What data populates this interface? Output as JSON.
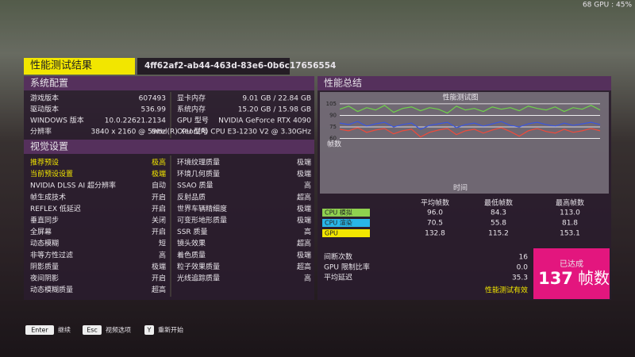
{
  "hud": "68 GPU : 45%",
  "header": {
    "title": "性能测试结果",
    "id": "4ff62af2-ab44-463d-83e6-0b6c17656554"
  },
  "system": {
    "title": "系统配置",
    "left": [
      [
        "游戏版本",
        "607493"
      ],
      [
        "驱动版本",
        "536.99"
      ],
      [
        "WINDOWS 版本",
        "10.0.22621.2134"
      ],
      [
        "分辨率",
        "3840 x 2160 @ 59Hz"
      ]
    ],
    "right": [
      [
        "显卡内存",
        "9.01 GB / 22.84 GB"
      ],
      [
        "系统内存",
        "15.20 GB / 15.98 GB"
      ],
      [
        "GPU 型号",
        "NVIDIA GeForce RTX 4090"
      ],
      [
        "CPU 型号",
        "Intel(R) Xeon(R) CPU E3-1230 V2 @ 3.30GHz"
      ]
    ]
  },
  "visual": {
    "title": "视觉设置",
    "left": [
      [
        "推荐预设",
        "极高"
      ],
      [
        "当前预设设置",
        "极端"
      ],
      [
        "NVIDIA DLSS AI 超分辨率",
        "自动"
      ],
      [
        "帧生成技术",
        "开启"
      ],
      [
        "REFLEX 低延迟",
        "开启"
      ],
      [
        "垂直同步",
        "关闭"
      ],
      [
        "全屏幕",
        "开启"
      ],
      [
        "动态模糊",
        "短"
      ],
      [
        "非等方性过滤",
        "高"
      ],
      [
        "阴影质量",
        "极端"
      ],
      [
        "夜间阴影",
        "开启"
      ],
      [
        "动态模糊质量",
        "超高"
      ]
    ],
    "right": [
      [
        "环境纹理质量",
        "极端"
      ],
      [
        "环境几何质量",
        "极端"
      ],
      [
        "SSAO 质量",
        "高"
      ],
      [
        "反射品质",
        "超高"
      ],
      [
        "世界车辆精细度",
        "极端"
      ],
      [
        "可变形地形质量",
        "极端"
      ],
      [
        "SSR 质量",
        "高"
      ],
      [
        "镜头效果",
        "超高"
      ],
      [
        "着色质量",
        "极端"
      ],
      [
        "粒子效果质量",
        "超高"
      ],
      [
        "光线追踪质量",
        "高"
      ]
    ]
  },
  "summary": {
    "title": "性能总结",
    "chart": {
      "type": "line",
      "title": "性能测试图",
      "ylabel": "帧数",
      "xlabel": "时间",
      "ylim": [
        5,
        110
      ],
      "yticks": [
        105,
        90,
        75,
        60
      ],
      "series": [
        {
          "color": "#6fd24a",
          "values": [
            98,
            102,
            95,
            100,
            97,
            103,
            94,
            99,
            101,
            96,
            100,
            98,
            93,
            102,
            97,
            99,
            95,
            101,
            98,
            100,
            96,
            102,
            99,
            97,
            101,
            95,
            100,
            98,
            103,
            97
          ]
        },
        {
          "color": "#3a56e0",
          "values": [
            80,
            78,
            82,
            76,
            79,
            81,
            75,
            78,
            80,
            72,
            77,
            79,
            81,
            74,
            78,
            80,
            76,
            79,
            82,
            77,
            75,
            79,
            81,
            78,
            76,
            80,
            77,
            79,
            81,
            78
          ]
        },
        {
          "color": "#f04a3a",
          "values": [
            72,
            70,
            74,
            68,
            71,
            73,
            66,
            70,
            72,
            62,
            68,
            71,
            73,
            65,
            70,
            72,
            67,
            71,
            74,
            69,
            63,
            70,
            73,
            69,
            67,
            72,
            68,
            70,
            73,
            70
          ]
        }
      ]
    },
    "table": {
      "columns": [
        "平均帧数",
        "最低帧数",
        "最高帧数"
      ],
      "rows": [
        {
          "label": "CPU 模拟",
          "color": "#8fd14f",
          "values": [
            "96.0",
            "84.3",
            "113.0"
          ]
        },
        {
          "label": "CPU 渲染",
          "color": "#29b6e8",
          "values": [
            "70.5",
            "55.8",
            "81.8"
          ]
        },
        {
          "label": "GPU",
          "color": "#f2e600",
          "values": [
            "132.8",
            "115.2",
            "153.1"
          ]
        }
      ]
    },
    "stats": [
      [
        "间断次数",
        "16"
      ],
      [
        "GPU 限制比率",
        "0.0"
      ],
      [
        "平均延迟",
        "35.3"
      ]
    ],
    "status": "性能测试有效",
    "result": {
      "caption": "已达成",
      "value": 137,
      "unit": "帧数"
    }
  },
  "prompts": [
    {
      "key": "Enter",
      "label": "继续"
    },
    {
      "key": "Esc",
      "label": "视频选项"
    },
    {
      "key": "Y",
      "label": "重新开始"
    }
  ]
}
